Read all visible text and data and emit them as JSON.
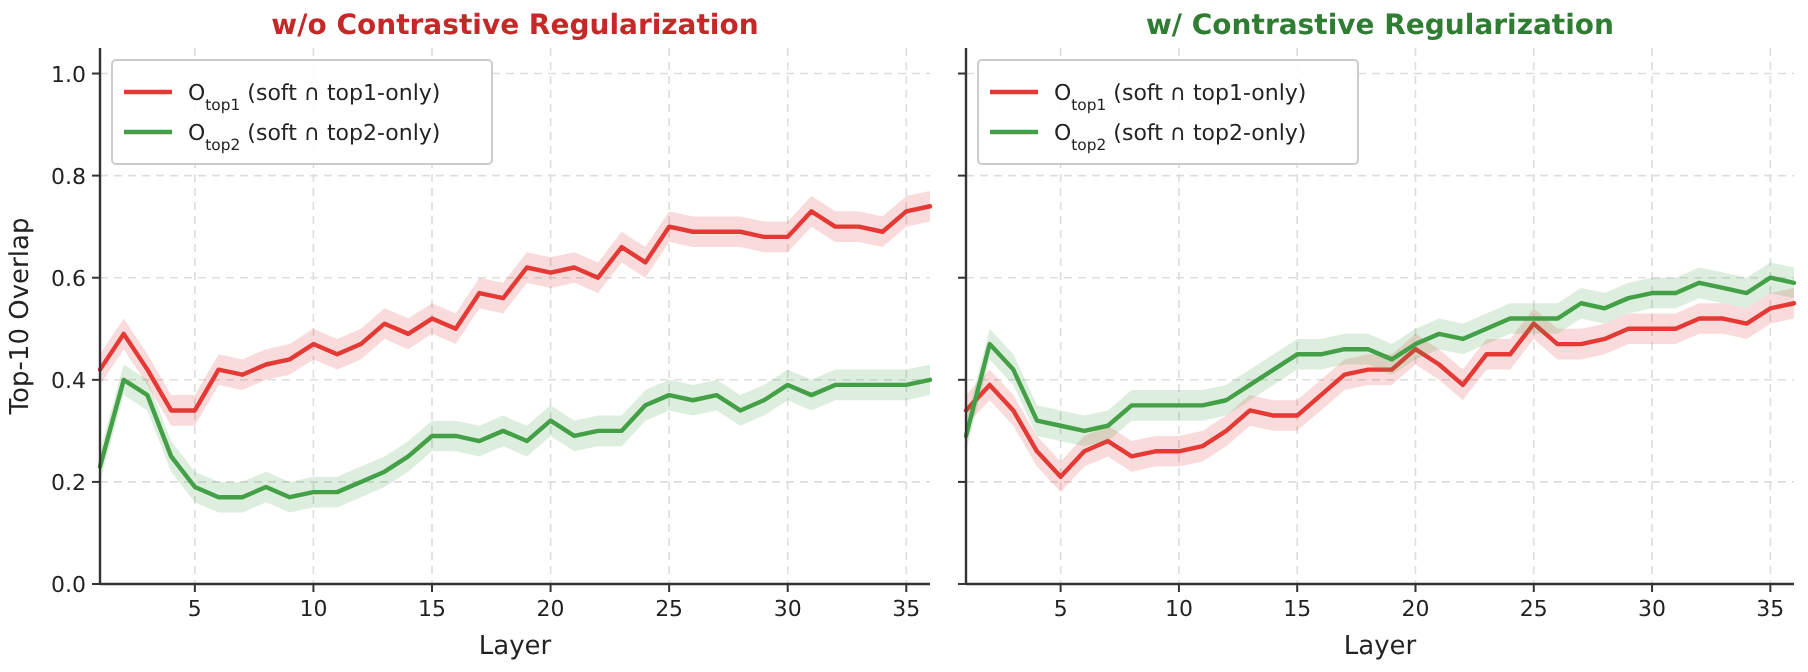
{
  "chart_data": [
    {
      "type": "line",
      "title": "w/o Contrastive Regularization",
      "xlabel": "Layer",
      "ylabel": "Top-10 Overlap",
      "x": [
        1,
        2,
        3,
        4,
        5,
        6,
        7,
        8,
        9,
        10,
        11,
        12,
        13,
        14,
        15,
        16,
        17,
        18,
        19,
        20,
        21,
        22,
        23,
        24,
        25,
        26,
        27,
        28,
        29,
        30,
        31,
        32,
        33,
        34,
        35,
        36
      ],
      "xlim": [
        1,
        36
      ],
      "xticks": [
        5,
        10,
        15,
        20,
        25,
        30,
        35
      ],
      "ylim": [
        0,
        1.05
      ],
      "yticks": [
        {
          "value": 0,
          "label": "0.0"
        },
        0.2,
        0.4,
        0.6,
        0.8,
        {
          "value": 1,
          "label": "1.0"
        }
      ],
      "grid": true,
      "legend": "top left",
      "series": [
        {
          "name": "O$_{top1}$ (soft ∩ top1-only)",
          "color": "#e53935",
          "values": [
            0.42,
            0.49,
            0.42,
            0.34,
            0.34,
            0.42,
            0.41,
            0.43,
            0.44,
            0.47,
            0.45,
            0.47,
            0.51,
            0.49,
            0.52,
            0.5,
            0.57,
            0.56,
            0.62,
            0.61,
            0.62,
            0.6,
            0.66,
            0.63,
            0.7,
            0.69,
            0.69,
            0.69,
            0.68,
            0.68,
            0.73,
            0.7,
            0.7,
            0.69,
            0.73,
            0.74
          ],
          "lower": [
            0.39,
            0.46,
            0.39,
            0.31,
            0.31,
            0.39,
            0.38,
            0.4,
            0.41,
            0.44,
            0.42,
            0.44,
            0.48,
            0.46,
            0.49,
            0.47,
            0.54,
            0.53,
            0.59,
            0.58,
            0.59,
            0.57,
            0.63,
            0.6,
            0.67,
            0.66,
            0.66,
            0.66,
            0.65,
            0.65,
            0.7,
            0.67,
            0.67,
            0.66,
            0.7,
            0.71
          ],
          "upper": [
            0.45,
            0.52,
            0.45,
            0.37,
            0.37,
            0.45,
            0.44,
            0.46,
            0.47,
            0.5,
            0.48,
            0.5,
            0.54,
            0.52,
            0.55,
            0.53,
            0.6,
            0.59,
            0.65,
            0.64,
            0.65,
            0.63,
            0.69,
            0.66,
            0.73,
            0.72,
            0.72,
            0.72,
            0.71,
            0.71,
            0.76,
            0.73,
            0.73,
            0.72,
            0.76,
            0.77
          ]
        },
        {
          "name": "O$_{top2}$ (soft ∩ top2-only)",
          "color": "#43a047",
          "values": [
            0.23,
            0.4,
            0.37,
            0.25,
            0.19,
            0.17,
            0.17,
            0.19,
            0.17,
            0.18,
            0.18,
            0.2,
            0.22,
            0.25,
            0.29,
            0.29,
            0.28,
            0.3,
            0.28,
            0.32,
            0.29,
            0.3,
            0.3,
            0.35,
            0.37,
            0.36,
            0.37,
            0.34,
            0.36,
            0.39,
            0.37,
            0.39,
            0.39,
            0.39,
            0.39,
            0.4
          ],
          "lower": [
            0.2,
            0.37,
            0.34,
            0.22,
            0.16,
            0.14,
            0.14,
            0.16,
            0.14,
            0.15,
            0.15,
            0.17,
            0.19,
            0.22,
            0.26,
            0.26,
            0.25,
            0.27,
            0.25,
            0.29,
            0.26,
            0.27,
            0.27,
            0.32,
            0.34,
            0.33,
            0.34,
            0.31,
            0.33,
            0.36,
            0.34,
            0.36,
            0.36,
            0.36,
            0.36,
            0.37
          ],
          "upper": [
            0.26,
            0.43,
            0.4,
            0.28,
            0.22,
            0.2,
            0.2,
            0.22,
            0.2,
            0.21,
            0.21,
            0.23,
            0.25,
            0.28,
            0.32,
            0.32,
            0.31,
            0.33,
            0.31,
            0.35,
            0.32,
            0.33,
            0.33,
            0.38,
            0.4,
            0.39,
            0.4,
            0.37,
            0.39,
            0.42,
            0.4,
            0.42,
            0.42,
            0.42,
            0.42,
            0.43
          ]
        }
      ]
    },
    {
      "type": "line",
      "title": "w/ Contrastive Regularization",
      "xlabel": "Layer",
      "x": [
        1,
        2,
        3,
        4,
        5,
        6,
        7,
        8,
        9,
        10,
        11,
        12,
        13,
        14,
        15,
        16,
        17,
        18,
        19,
        20,
        21,
        22,
        23,
        24,
        25,
        26,
        27,
        28,
        29,
        30,
        31,
        32,
        33,
        34,
        35,
        36
      ],
      "xlim": [
        1,
        36
      ],
      "xticks": [
        5,
        10,
        15,
        20,
        25,
        30,
        35
      ],
      "ylim": [
        0,
        1.05
      ],
      "yticks": [
        {
          "value": 0,
          "label": null
        },
        {
          "value": 0.2,
          "label": null
        },
        {
          "value": 0.4,
          "label": null
        },
        {
          "value": 0.6,
          "label": null
        },
        {
          "value": 0.8,
          "label": null
        },
        {
          "value": 1,
          "label": null
        }
      ],
      "tick_labels": "x",
      "grid": true,
      "legend": "top left",
      "series": [
        {
          "name": "O$_{top1}$ (soft ∩ top1-only)",
          "color": "#e53935",
          "values": [
            0.34,
            0.39,
            0.34,
            0.26,
            0.21,
            0.26,
            0.28,
            0.25,
            0.26,
            0.26,
            0.27,
            0.3,
            0.34,
            0.33,
            0.33,
            0.37,
            0.41,
            0.42,
            0.42,
            0.46,
            0.43,
            0.39,
            0.45,
            0.45,
            0.51,
            0.47,
            0.47,
            0.48,
            0.5,
            0.5,
            0.5,
            0.52,
            0.52,
            0.51,
            0.54,
            0.55
          ],
          "lower": [
            0.31,
            0.36,
            0.31,
            0.23,
            0.18,
            0.23,
            0.25,
            0.22,
            0.23,
            0.23,
            0.24,
            0.27,
            0.31,
            0.3,
            0.3,
            0.34,
            0.38,
            0.39,
            0.39,
            0.43,
            0.4,
            0.36,
            0.42,
            0.42,
            0.48,
            0.44,
            0.44,
            0.45,
            0.47,
            0.47,
            0.47,
            0.49,
            0.49,
            0.48,
            0.51,
            0.52
          ],
          "upper": [
            0.37,
            0.42,
            0.37,
            0.29,
            0.24,
            0.29,
            0.31,
            0.28,
            0.29,
            0.29,
            0.3,
            0.33,
            0.37,
            0.36,
            0.36,
            0.4,
            0.44,
            0.45,
            0.45,
            0.49,
            0.46,
            0.42,
            0.48,
            0.48,
            0.54,
            0.5,
            0.5,
            0.51,
            0.53,
            0.53,
            0.53,
            0.55,
            0.55,
            0.54,
            0.57,
            0.58
          ]
        },
        {
          "name": "O$_{top2}$ (soft ∩ top2-only)",
          "color": "#43a047",
          "values": [
            0.29,
            0.47,
            0.42,
            0.32,
            0.31,
            0.3,
            0.31,
            0.35,
            0.35,
            0.35,
            0.35,
            0.36,
            0.39,
            0.42,
            0.45,
            0.45,
            0.46,
            0.46,
            0.44,
            0.47,
            0.49,
            0.48,
            0.5,
            0.52,
            0.52,
            0.52,
            0.55,
            0.54,
            0.56,
            0.57,
            0.57,
            0.59,
            0.58,
            0.57,
            0.6,
            0.59
          ],
          "lower": [
            0.26,
            0.44,
            0.39,
            0.29,
            0.28,
            0.27,
            0.28,
            0.32,
            0.32,
            0.32,
            0.32,
            0.33,
            0.36,
            0.39,
            0.42,
            0.42,
            0.43,
            0.43,
            0.41,
            0.44,
            0.46,
            0.45,
            0.47,
            0.49,
            0.49,
            0.49,
            0.52,
            0.51,
            0.53,
            0.54,
            0.54,
            0.56,
            0.55,
            0.54,
            0.57,
            0.56
          ],
          "upper": [
            0.32,
            0.5,
            0.45,
            0.35,
            0.34,
            0.33,
            0.34,
            0.38,
            0.38,
            0.38,
            0.38,
            0.39,
            0.42,
            0.45,
            0.48,
            0.48,
            0.49,
            0.49,
            0.47,
            0.5,
            0.52,
            0.51,
            0.53,
            0.55,
            0.55,
            0.55,
            0.58,
            0.57,
            0.59,
            0.6,
            0.6,
            0.62,
            0.61,
            0.6,
            0.63,
            0.62
          ]
        }
      ]
    }
  ]
}
